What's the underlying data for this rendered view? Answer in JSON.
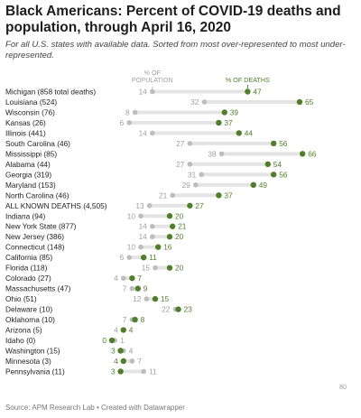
{
  "header": {
    "title": "Black Americans: Percent of COVID-19 deaths and population, through April 16, 2020",
    "subtitle": "For all U.S. states with available data. Sorted from most over-represented to most under-represented."
  },
  "footer": {
    "source": "Source: APM Research Lab • Created with Datawrapper"
  },
  "chart_data": {
    "type": "dot-range",
    "legend": {
      "population_lines": [
        "% OF",
        "POPULATION"
      ],
      "deaths": "% OF DEATHS"
    },
    "colors": {
      "population": "#bdbdbd",
      "deaths": "#4f7f2a",
      "deaths_text": "#4f7f2a",
      "population_text": "#a0a0a0",
      "bar": "#e4e4e4"
    },
    "xlim": [
      0,
      80
    ],
    "x_tick_labels": [
      "80"
    ],
    "rows": [
      {
        "label": "Michigan (858 total deaths)",
        "population": 14,
        "deaths": 47
      },
      {
        "label": "Louisiana (524)",
        "population": 32,
        "deaths": 65
      },
      {
        "label": "Wisconsin (76)",
        "population": 8,
        "deaths": 39
      },
      {
        "label": "Kansas (26)",
        "population": 6,
        "deaths": 37
      },
      {
        "label": "Illinois (441)",
        "population": 14,
        "deaths": 44
      },
      {
        "label": "South Carolina (46)",
        "population": 27,
        "deaths": 56
      },
      {
        "label": "Mississippi (85)",
        "population": 38,
        "deaths": 66
      },
      {
        "label": "Alabama (44)",
        "population": 27,
        "deaths": 54
      },
      {
        "label": "Georgia (319)",
        "population": 31,
        "deaths": 56
      },
      {
        "label": "Maryland (153)",
        "population": 29,
        "deaths": 49
      },
      {
        "label": "North Carolina (46)",
        "population": 21,
        "deaths": 37
      },
      {
        "label": "ALL KNOWN DEATHS (4,505)",
        "population": 13,
        "deaths": 27
      },
      {
        "label": "Indiana (94)",
        "population": 10,
        "deaths": 20
      },
      {
        "label": "New York State (877)",
        "population": 14,
        "deaths": 21
      },
      {
        "label": "New Jersey (386)",
        "population": 14,
        "deaths": 20
      },
      {
        "label": "Connecticut (148)",
        "population": 10,
        "deaths": 16
      },
      {
        "label": "California (85)",
        "population": 6,
        "deaths": 11
      },
      {
        "label": "Florida (118)",
        "population": 15,
        "deaths": 20
      },
      {
        "label": "Colorado (27)",
        "population": 4,
        "deaths": 7
      },
      {
        "label": "Massachusetts (47)",
        "population": 7,
        "deaths": 9
      },
      {
        "label": "Ohio (51)",
        "population": 12,
        "deaths": 15
      },
      {
        "label": "Delaware (10)",
        "population": 22,
        "deaths": 23
      },
      {
        "label": "Oklahoma (10)",
        "population": 7,
        "deaths": 8
      },
      {
        "label": "Arizona (5)",
        "population": 4,
        "deaths": 4
      },
      {
        "label": "Idaho (0)",
        "population": 1,
        "deaths": 0
      },
      {
        "label": "Washington (15)",
        "population": 4,
        "deaths": 3
      },
      {
        "label": "Minnesota (3)",
        "population": 7,
        "deaths": 4
      },
      {
        "label": "Pennsylvania (11)",
        "population": 11,
        "deaths": 3
      }
    ]
  }
}
